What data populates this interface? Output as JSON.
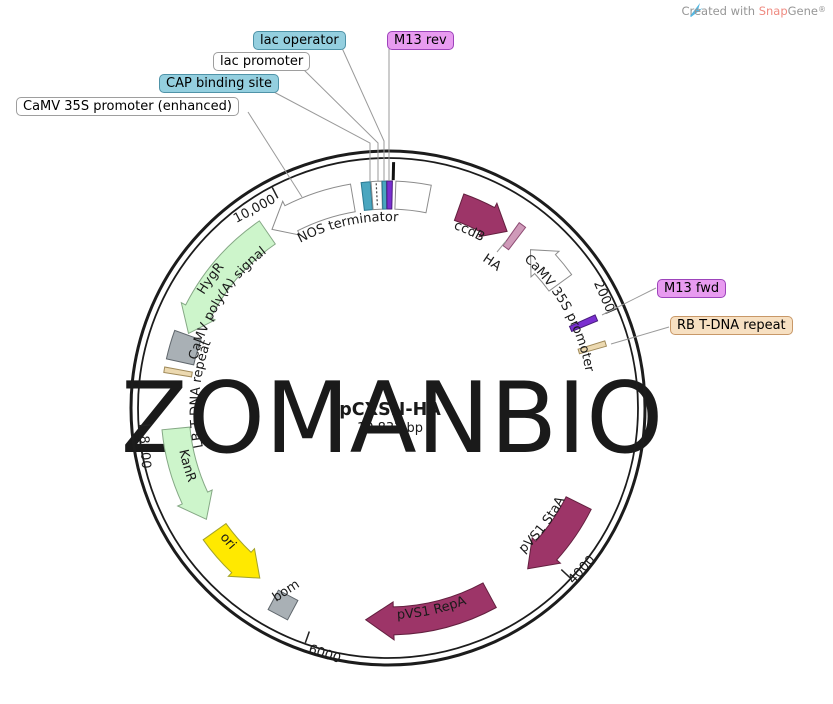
{
  "attribution": {
    "created_with": "Created with ",
    "brand_snap": "Snap",
    "brand_gene": "Gene",
    "registered_mark": "®"
  },
  "watermark_text": "ZOMANBIO",
  "plasmid": {
    "name": "pCXSN-HA",
    "size_bp": "10,832 bp"
  },
  "colors": {
    "maroon": "#9d3568",
    "maroon_border": "#63203f",
    "green": "#cdf5cb",
    "green_border": "#85a885",
    "yellow": "#ffe900",
    "yellow_border": "#a3a32a",
    "white_feature": "#ffffff",
    "feature_border_gray": "#8c8c8c",
    "teal_block": "#4aa6bf",
    "teal_block_border": "#2a7a93",
    "purple_block": "#7a2fd0",
    "purple_block_border": "#4a1d7e",
    "tan_block": "#ecd9b0",
    "tan_block_border": "#a08a5a",
    "mauve_block": "#cf9ab9",
    "mauve_block_border": "#8c4a72",
    "gray_box": "#a9b0b5",
    "gray_box_border": "#5f666c",
    "label_teal_bg": "#94cfdf",
    "label_purple_bg": "#e89bf0",
    "label_tan_bg": "#f7e0c2",
    "backbone": "#1c1c1c",
    "callout_line": "#9a9a9a",
    "watermark": "#ededed",
    "snap_red": "#ef8a80",
    "attribution_gray": "#969696",
    "snapgene_icon_blue": "#55b8e2"
  },
  "callout_labels": [
    {
      "text": "CaMV 35S promoter (enhanced)",
      "style": "white"
    },
    {
      "text": "CAP binding site",
      "style": "teal"
    },
    {
      "text": "lac promoter",
      "style": "white"
    },
    {
      "text": "lac operator",
      "style": "teal"
    },
    {
      "text": "M13 rev",
      "style": "purple"
    },
    {
      "text": "M13 fwd",
      "style": "purple"
    },
    {
      "text": "RB T-DNA repeat",
      "style": "tan"
    }
  ],
  "arc_labels": {
    "nos_terminator": "NOS terminator",
    "ccdb": "ccdB",
    "ha": "HA",
    "camv_35s_promoter": "CaMV 35S promoter",
    "pvs1_staa": "pVS1 StaA",
    "pvs1_repa": "pVS1 RepA",
    "bom": "bom",
    "ori": "ori",
    "kanr": "KanR",
    "lb_t_dna": "LB T-DNA repeat",
    "camv_polya": "CaMV poly(A) signal",
    "hygr": "HygR"
  },
  "ticks": [
    {
      "label": "2000"
    },
    {
      "label": "4000"
    },
    {
      "label": "6000"
    },
    {
      "label": "8000"
    },
    {
      "label": "10,000"
    }
  ]
}
